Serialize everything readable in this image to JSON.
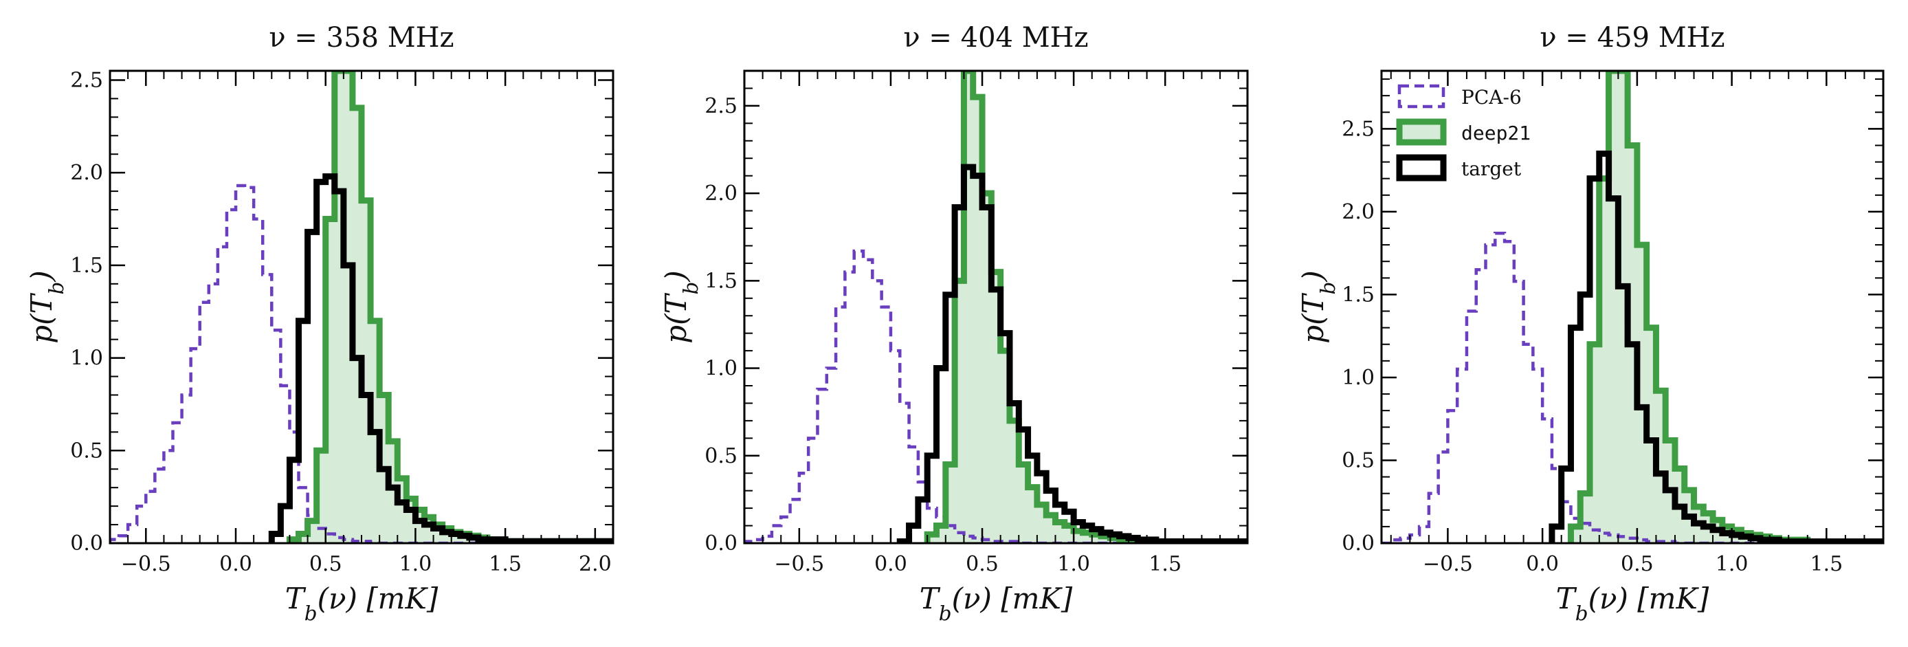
{
  "figure": {
    "shared_xlabel": "T_b(ν) [mK]",
    "shared_ylabel": "p(T_b)"
  },
  "legend": [
    {
      "label": "PCA-6",
      "style": "dashed",
      "color": "#6a3fbf"
    },
    {
      "label": "deep21",
      "style": "filled-step",
      "color": "#3f9e44",
      "fill": "#d7ecd8"
    },
    {
      "label": "target",
      "style": "step",
      "color": "#000000"
    }
  ],
  "chart_data": [
    {
      "type": "histogram-step",
      "title": "ν = 358 MHz",
      "xlabel": "T_b(ν) [mK]",
      "ylabel": "p(T_b)",
      "xlim": [
        -0.7,
        2.1
      ],
      "ylim": [
        0,
        2.55
      ],
      "xticks": [
        -0.5,
        0.0,
        0.5,
        1.0,
        1.5,
        2.0
      ],
      "xtick_labels": [
        "−0.5",
        "0.0",
        "0.5",
        "1.0",
        "1.5",
        "2.0"
      ],
      "yticks": [
        0.0,
        0.5,
        1.0,
        1.5,
        2.0,
        2.5
      ],
      "ytick_labels": [
        "0.0",
        "0.5",
        "1.0",
        "1.5",
        "2.0",
        "2.5"
      ],
      "series": [
        {
          "name": "PCA-6",
          "x0": -0.7,
          "bin": 0.05,
          "values": [
            0.02,
            0.04,
            0.1,
            0.2,
            0.28,
            0.4,
            0.5,
            0.65,
            0.8,
            1.05,
            1.3,
            1.4,
            1.6,
            1.8,
            1.93,
            1.92,
            1.75,
            1.45,
            1.15,
            0.85,
            0.6,
            0.3,
            0.15,
            0.08,
            0.05,
            0.03,
            0.02,
            0.01,
            0.01,
            0,
            0,
            0,
            0,
            0,
            0,
            0,
            0,
            0,
            0,
            0,
            0,
            0,
            0,
            0,
            0,
            0,
            0,
            0,
            0,
            0,
            0,
            0,
            0,
            0,
            0,
            0
          ]
        },
        {
          "name": "deep21",
          "x0": 0.3,
          "bin": 0.05,
          "values": [
            0.02,
            0.05,
            0.12,
            0.5,
            1.75,
            2.55,
            2.55,
            2.35,
            1.85,
            1.2,
            0.8,
            0.55,
            0.35,
            0.24,
            0.18,
            0.14,
            0.1,
            0.08,
            0.06,
            0.05,
            0.04,
            0.03,
            0.02,
            0.02,
            0.01,
            0.01,
            0.01,
            0.01,
            0.01,
            0.01,
            0.01,
            0.01,
            0.01,
            0.01,
            0.01,
            0.01
          ]
        },
        {
          "name": "target",
          "x0": 0.2,
          "bin": 0.05,
          "values": [
            0.05,
            0.2,
            0.45,
            1.2,
            1.68,
            1.95,
            1.98,
            1.9,
            1.5,
            1.0,
            0.8,
            0.6,
            0.4,
            0.3,
            0.22,
            0.18,
            0.12,
            0.1,
            0.08,
            0.06,
            0.05,
            0.04,
            0.03,
            0.02,
            0.02,
            0.02,
            0.01,
            0.01,
            0.01,
            0.01,
            0.01,
            0.01,
            0.01,
            0.01,
            0.01,
            0.01,
            0.01,
            0.01
          ]
        }
      ]
    },
    {
      "type": "histogram-step",
      "title": "ν = 404 MHz",
      "xlabel": "T_b(ν) [mK]",
      "ylabel": "p(T_b)",
      "xlim": [
        -0.8,
        1.95
      ],
      "ylim": [
        0,
        2.7
      ],
      "xticks": [
        -0.5,
        0.0,
        0.5,
        1.0,
        1.5
      ],
      "xtick_labels": [
        "−0.5",
        "0.0",
        "0.5",
        "1.0",
        "1.5"
      ],
      "yticks": [
        0.0,
        0.5,
        1.0,
        1.5,
        2.0,
        2.5
      ],
      "ytick_labels": [
        "0.0",
        "0.5",
        "1.0",
        "1.5",
        "2.0",
        "2.5"
      ],
      "series": [
        {
          "name": "PCA-6",
          "x0": -0.8,
          "bin": 0.05,
          "values": [
            0.01,
            0.02,
            0.04,
            0.1,
            0.15,
            0.25,
            0.4,
            0.6,
            0.88,
            1.0,
            1.35,
            1.55,
            1.67,
            1.62,
            1.5,
            1.35,
            1.1,
            0.8,
            0.55,
            0.35,
            0.2,
            0.15,
            0.1,
            0.06,
            0.04,
            0.03,
            0.02,
            0.01,
            0.01,
            0.01,
            0,
            0,
            0,
            0,
            0,
            0,
            0,
            0,
            0,
            0,
            0,
            0,
            0,
            0,
            0,
            0,
            0,
            0,
            0,
            0,
            0,
            0,
            0,
            0,
            0
          ]
        },
        {
          "name": "deep21",
          "x0": 0.2,
          "bin": 0.05,
          "values": [
            0.05,
            0.1,
            0.45,
            1.5,
            2.7,
            2.55,
            2.0,
            1.55,
            1.1,
            0.7,
            0.45,
            0.32,
            0.22,
            0.16,
            0.12,
            0.1,
            0.07,
            0.06,
            0.05,
            0.04,
            0.03,
            0.02,
            0.02,
            0.01,
            0.01,
            0.01,
            0.01,
            0.01,
            0.01,
            0.01,
            0.01,
            0.01,
            0.01,
            0.01,
            0.01
          ]
        },
        {
          "name": "target",
          "x0": 0.05,
          "bin": 0.05,
          "values": [
            0.01,
            0.1,
            0.25,
            0.5,
            1.0,
            1.42,
            1.92,
            2.15,
            2.1,
            1.92,
            1.45,
            1.2,
            0.8,
            0.65,
            0.5,
            0.4,
            0.3,
            0.22,
            0.18,
            0.12,
            0.1,
            0.08,
            0.06,
            0.05,
            0.04,
            0.03,
            0.02,
            0.02,
            0.01,
            0.01,
            0.01,
            0.01,
            0.01,
            0.01,
            0.01,
            0.01,
            0.01,
            0.01
          ]
        }
      ]
    },
    {
      "type": "histogram-step",
      "title": "ν = 459 MHz",
      "xlabel": "T_b(ν) [mK]",
      "ylabel": "p(T_b)",
      "xlim": [
        -0.85,
        1.8
      ],
      "ylim": [
        0,
        2.85
      ],
      "xticks": [
        -0.5,
        0.0,
        0.5,
        1.0,
        1.5
      ],
      "xtick_labels": [
        "−0.5",
        "0.0",
        "0.5",
        "1.0",
        "1.5"
      ],
      "yticks": [
        0.0,
        0.5,
        1.0,
        1.5,
        2.0,
        2.5
      ],
      "ytick_labels": [
        "0.0",
        "0.5",
        "1.0",
        "1.5",
        "2.0",
        "2.5"
      ],
      "series": [
        {
          "name": "PCA-6",
          "x0": -0.85,
          "bin": 0.05,
          "values": [
            0,
            0.02,
            0.03,
            0.05,
            0.1,
            0.3,
            0.55,
            0.8,
            1.05,
            1.4,
            1.65,
            1.8,
            1.87,
            1.82,
            1.58,
            1.2,
            1.05,
            0.75,
            0.45,
            0.25,
            0.15,
            0.12,
            0.08,
            0.06,
            0.05,
            0.04,
            0.03,
            0.02,
            0.01,
            0.01,
            0.01,
            0,
            0,
            0,
            0,
            0,
            0,
            0,
            0,
            0,
            0,
            0,
            0,
            0,
            0,
            0,
            0,
            0,
            0,
            0,
            0,
            0,
            0
          ]
        },
        {
          "name": "deep21",
          "x0": 0.15,
          "bin": 0.05,
          "values": [
            0.1,
            0.3,
            1.2,
            2.2,
            2.85,
            2.85,
            2.4,
            1.8,
            1.3,
            0.92,
            0.62,
            0.45,
            0.32,
            0.22,
            0.18,
            0.14,
            0.1,
            0.08,
            0.06,
            0.05,
            0.04,
            0.03,
            0.02,
            0.02,
            0.02,
            0.01,
            0.01,
            0.01,
            0.01,
            0.01,
            0.01,
            0.01,
            0.01
          ]
        },
        {
          "name": "target",
          "x0": 0.05,
          "bin": 0.05,
          "values": [
            0.1,
            0.45,
            1.3,
            1.5,
            2.2,
            2.35,
            2.08,
            1.55,
            1.2,
            0.82,
            0.62,
            0.42,
            0.32,
            0.22,
            0.16,
            0.12,
            0.1,
            0.08,
            0.06,
            0.05,
            0.04,
            0.03,
            0.02,
            0.02,
            0.01,
            0.01,
            0.01,
            0.01,
            0.01,
            0.01,
            0.01,
            0.01,
            0.01,
            0.01,
            0.01
          ]
        }
      ]
    }
  ]
}
